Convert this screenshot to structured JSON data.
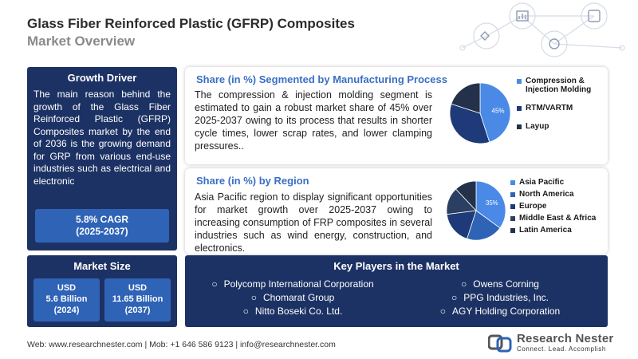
{
  "header": {
    "title": "Glass Fiber Reinforced Plastic (GFRP) Composites",
    "subtitle": "Market Overview"
  },
  "growth_driver": {
    "heading": "Growth Driver",
    "text": "The main reason behind the growth of the Glass Fiber Reinforced Plastic (GFRP) Composites market by the end of 2036 is the growing demand for GRP from various end-use industries such as electrical and electronic",
    "cagr": "5.8% CAGR",
    "cagr_period": "(2025-2037)"
  },
  "market_size": {
    "heading": "Market Size",
    "boxes": [
      {
        "currency": "USD",
        "value": "5.6 Billion",
        "year": "(2024)"
      },
      {
        "currency": "USD",
        "value": "11.65 Billion",
        "year": "(2037)"
      }
    ]
  },
  "manufacturing": {
    "title": "Share (in %) Segmented by Manufacturing Process",
    "text": "The compression & injection molding segment is estimated to gain a robust market share of 45% over 2025-2037 owing to its process that results in shorter cycle times, lower scrap rates, and lower clamping pressures..",
    "pie_label": "45%",
    "legend": [
      "Compression & Injection Molding",
      "RTM/VARTM",
      "Layup"
    ]
  },
  "region": {
    "title": "Share (in %) by Region",
    "text": "Asia Pacific region to display significant opportunities for market growth over 2025-2037 owing to increasing consumption of FRP composites in several industries such as wind energy, construction, and electronics.",
    "pie_label": "35%",
    "legend": [
      "Asia Pacific",
      "North America",
      "Europe",
      "Middle East & Africa",
      "Latin America"
    ]
  },
  "key_players": {
    "heading": "Key Players in the Market",
    "items": [
      "Polycomp International Corporation",
      "Owens Corning",
      "Chomarat Group",
      "PPG Industries, Inc.",
      "Nitto Boseki Co. Ltd.",
      "AGY Holding Corporation"
    ]
  },
  "footer": {
    "text": "Web: www.researchnester.com | Mob: +1 646 586 9123 | info@researchnester.com"
  },
  "logo": {
    "name": "Research Nester",
    "tagline": "Connect. Lead. Accomplish"
  },
  "colors": {
    "navy": "#1d3264",
    "accent_blue": "#2f63b6",
    "light_blue": "#4a8ae6",
    "title_blue": "#3a6fc4",
    "dark_slate": "#26344e"
  },
  "chart_data": [
    {
      "type": "pie",
      "title": "Share (in %) Segmented by Manufacturing Process",
      "categories": [
        "Compression & Injection Molding",
        "RTM/VARTM",
        "Layup"
      ],
      "values": [
        45,
        35,
        20
      ],
      "colors": [
        "#4a8ae6",
        "#1f3a78",
        "#23314a"
      ]
    },
    {
      "type": "pie",
      "title": "Share (in %) by Region",
      "categories": [
        "Asia Pacific",
        "North America",
        "Europe",
        "Middle East & Africa",
        "Latin America"
      ],
      "values": [
        35,
        20,
        18,
        15,
        12
      ],
      "colors": [
        "#4a8ae6",
        "#2f63b6",
        "#1f3a78",
        "#2b3f63",
        "#23314a"
      ]
    }
  ]
}
